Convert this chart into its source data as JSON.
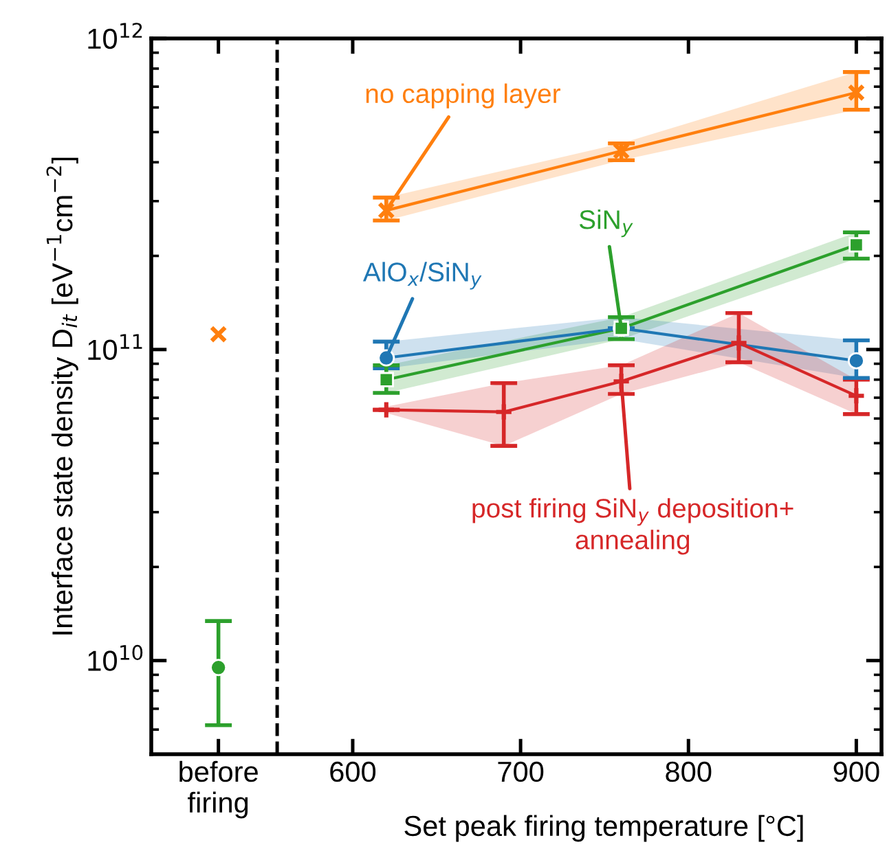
{
  "chart_data": {
    "type": "line",
    "xlabel": "Set peak firing temperature [°C]",
    "ylabel": "Interface state density D$_{it}$ [eV$^{−1}$cm$^{−2}$]",
    "log": "y",
    "xlim": [
      480,
      915
    ],
    "xticks": [
      {
        "value": 520,
        "label": "before\nfiring"
      },
      600,
      700,
      800,
      900
    ],
    "ylim": [
      5000000000.0,
      1000000000000.0
    ],
    "yticks": [
      {
        "value": 10000000000.0,
        "label": "10$^{10}$"
      },
      {
        "value": 100000000000.0,
        "label": "10$^{11}$"
      },
      {
        "value": 1000000000000.0,
        "label": "10$^{12}$"
      }
    ],
    "grid": false,
    "line_style": "solid",
    "ref_lines": [
      {
        "axis": "x",
        "value": 555,
        "color": "#000000",
        "line_style": "dashed"
      }
    ],
    "series": [
      {
        "name": "no capping layer",
        "color": "#ff7f0e",
        "marker": "cross",
        "x": [
          620,
          760,
          900
        ],
        "values": [
          280000000000.0,
          435000000000.0,
          670000000000.0
        ],
        "errors": [
          [
            260000000000.0,
            308000000000.0
          ],
          [
            406000000000.0,
            460000000000.0
          ],
          [
            590000000000.0,
            780000000000.0
          ]
        ],
        "lower": [
          260000000000.0,
          406000000000.0,
          590000000000.0
        ],
        "upper": [
          308000000000.0,
          460000000000.0,
          780000000000.0
        ]
      },
      {
        "name": "SiN$_{y}$",
        "color": "#2ca02c",
        "marker": "square",
        "x": [
          620,
          760,
          900
        ],
        "values": [
          80000000000.0,
          117000000000.0,
          217000000000.0
        ],
        "errors": [
          [
            72500000000.0,
            89000000000.0
          ],
          [
            108000000000.0,
            127000000000.0
          ],
          [
            196000000000.0,
            238000000000.0
          ]
        ],
        "lower": [
          72500000000.0,
          108000000000.0,
          196000000000.0
        ],
        "upper": [
          89000000000.0,
          127000000000.0,
          238000000000.0
        ]
      },
      {
        "name": "AlO$_{x}$/SiN$_{y}$",
        "color": "#1f77b4",
        "marker": "circle",
        "x": [
          620,
          760,
          900
        ],
        "values": [
          94000000000.0,
          117000000000.0,
          92000000000.0
        ],
        "errors": [
          [
            87000000000.0,
            106000000000.0
          ],
          null,
          [
            81000000000.0,
            107000000000.0
          ]
        ],
        "lower": [
          87000000000.0,
          108000000000.0,
          81000000000.0
        ],
        "upper": [
          106000000000.0,
          127000000000.0,
          107000000000.0
        ]
      },
      {
        "name": "post firing SiN$_{y}$ deposition+\nannealing",
        "color": "#d62728",
        "marker": "plus",
        "x": [
          620,
          690,
          760,
          830,
          900
        ],
        "values": [
          64000000000.0,
          63000000000.0,
          79000000000.0,
          105000000000.0,
          71000000000.0
        ],
        "errors": [
          null,
          [
            49000000000.0,
            78000000000.0
          ],
          [
            72000000000.0,
            89000000000.0
          ],
          [
            91000000000.0,
            131000000000.0
          ],
          [
            62000000000.0,
            80000000000.0
          ]
        ],
        "lower": [
          62500000000.0,
          49000000000.0,
          72000000000.0,
          91000000000.0,
          62000000000.0
        ],
        "upper": [
          65500000000.0,
          78000000000.0,
          89000000000.0,
          131000000000.0,
          80000000000.0
        ]
      },
      {
        "type": "scatter",
        "color": "#ff7f0e",
        "marker": "cross",
        "x": [
          520
        ],
        "values": [
          112000000000.0
        ]
      },
      {
        "type": "scatter",
        "color": "#2ca02c",
        "marker": "circle",
        "x": [
          520
        ],
        "values": [
          9500000000.0
        ],
        "errors": [
          [
            6200000000.0,
            13400000000.0
          ]
        ]
      }
    ]
  }
}
